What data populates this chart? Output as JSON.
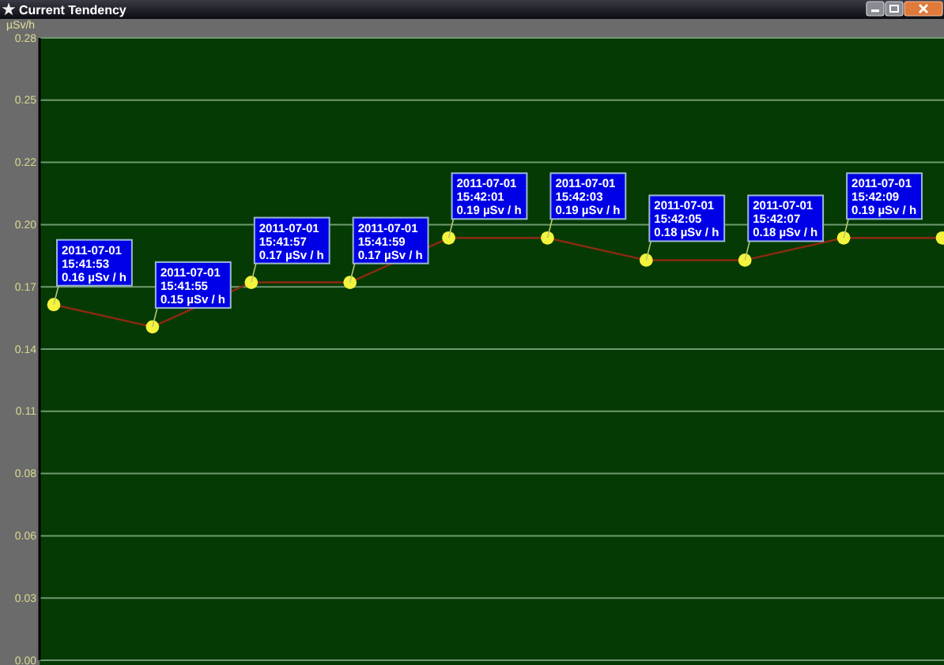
{
  "chart_data": {
    "type": "line",
    "title": "Current Tendency",
    "ylabel": "µSv/h",
    "categories": [
      null,
      null,
      null,
      null,
      null,
      null,
      null,
      null,
      null,
      null
    ],
    "series": [
      {
        "color": "#8b2a12",
        "colors": [
          "#f4f43c",
          "#f4f43c",
          "#f4f43c",
          "#f4f43c",
          "#f4f43c",
          "#f4f43c",
          "#f4f43c",
          "#f4f43c",
          "#f4f43c",
          "#f4f43c"
        ],
        "values": [
          0.16,
          0.15,
          0.17,
          0.17,
          0.19,
          0.19,
          0.18,
          0.18,
          0.19,
          0.19
        ],
        "value_labels": [
          "2011-07-01\n15:41:53\n0.16 µSv / h",
          "2011-07-01\n15:41:55\n0.15 µSv / h",
          "2011-07-01\n15:41:57\n0.17 µSv / h",
          "2011-07-01\n15:41:59\n0.17 µSv / h",
          "2011-07-01\n15:42:01\n0.19 µSv / h",
          "2011-07-01\n15:42:03\n0.19 µSv / h",
          "2011-07-01\n15:42:05\n0.18 µSv / h",
          "2011-07-01\n15:42:07\n0.18 µSv / h",
          "2011-07-01\n15:42:09\n0.19 µSv / h",
          null
        ]
      }
    ],
    "ylim": [
      0,
      0.28
    ],
    "yticks": [
      {
        "value": 0,
        "label": "0.00"
      },
      {
        "value": 0.028,
        "label": "0.03"
      },
      {
        "value": 0.056,
        "label": "0.06"
      },
      {
        "value": 0.084,
        "label": "0.08"
      },
      {
        "value": 0.112,
        "label": "0.11"
      },
      {
        "value": 0.14,
        "label": "0.14"
      },
      {
        "value": 0.168,
        "label": "0.17"
      },
      {
        "value": 0.196,
        "label": "0.20"
      },
      {
        "value": 0.224,
        "label": "0.22"
      },
      {
        "value": 0.252,
        "label": "0.25"
      },
      {
        "value": 0.28,
        "label": "0.28"
      }
    ],
    "grid": "y",
    "marker": "circle",
    "line_style": "solid",
    "tick_labels": "y"
  }
}
